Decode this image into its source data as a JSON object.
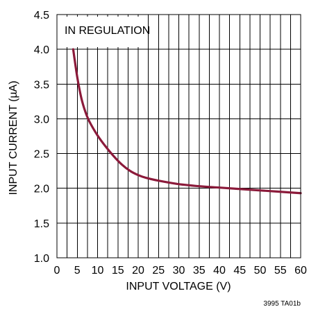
{
  "chart_data": {
    "type": "line",
    "xlabel": "INPUT VOLTAGE (V)",
    "ylabel": "INPUT CURRENT (µA)",
    "xlim": [
      0,
      60
    ],
    "ylim": [
      1.0,
      4.5
    ],
    "x_ticks": [
      0,
      5,
      10,
      15,
      20,
      25,
      30,
      35,
      40,
      45,
      50,
      55,
      60
    ],
    "y_ticks": [
      1.0,
      1.5,
      2.0,
      2.5,
      3.0,
      3.5,
      4.0,
      4.5
    ],
    "y_tick_labels": [
      "1.0",
      "1.5",
      "2.0",
      "2.5",
      "3.0",
      "3.5",
      "4.0",
      "4.5"
    ],
    "x_minor_grid": [
      2.5,
      7.5,
      12.5,
      17.5,
      22.5,
      27.5,
      32.5,
      37.5,
      42.5,
      47.5,
      52.5,
      57.5
    ],
    "grid": true,
    "annotation": "IN REGULATION",
    "series": [
      {
        "color": "#8b1a3a",
        "x": [
          4,
          5,
          6,
          7,
          8,
          10,
          12,
          14,
          16,
          18,
          20,
          22,
          25,
          30,
          35,
          40,
          45,
          50,
          55,
          60
        ],
        "y": [
          4.0,
          3.6,
          3.3,
          3.1,
          2.96,
          2.76,
          2.6,
          2.46,
          2.34,
          2.25,
          2.19,
          2.15,
          2.11,
          2.06,
          2.03,
          2.01,
          1.99,
          1.97,
          1.95,
          1.93
        ]
      }
    ]
  },
  "figure_code": "3995 TA01b"
}
